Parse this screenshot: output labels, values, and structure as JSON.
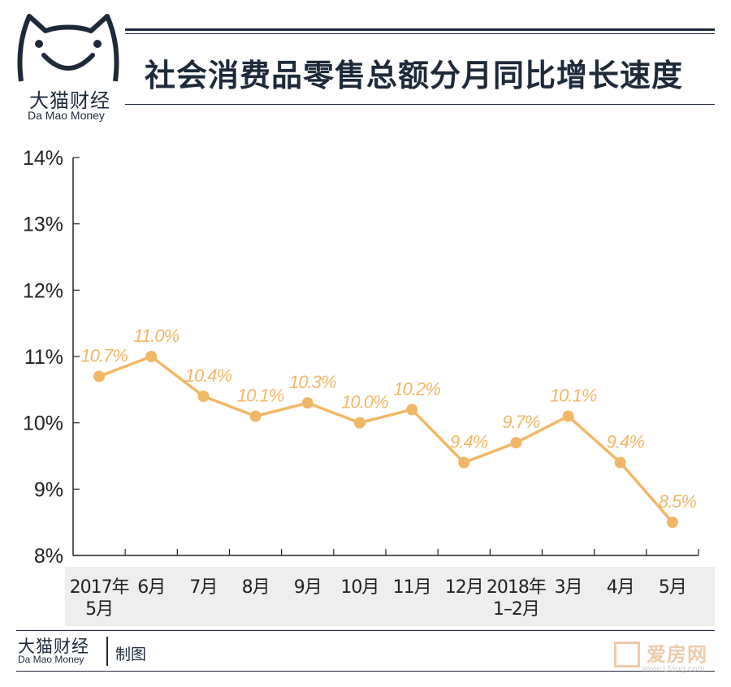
{
  "brand": {
    "name_cn": "大猫财经",
    "name_en": "Da Mao Money"
  },
  "title": "社会消费品零售总额分月同比增长速度",
  "chart_data": {
    "type": "line",
    "title": "社会消费品零售总额分月同比增长速度",
    "categories": [
      {
        "line1": "2017年",
        "line2": "5月"
      },
      {
        "line1": "6月",
        "line2": ""
      },
      {
        "line1": "7月",
        "line2": ""
      },
      {
        "line1": "8月",
        "line2": ""
      },
      {
        "line1": "9月",
        "line2": ""
      },
      {
        "line1": "10月",
        "line2": ""
      },
      {
        "line1": "11月",
        "line2": ""
      },
      {
        "line1": "12月",
        "line2": ""
      },
      {
        "line1": "2018年",
        "line2": "1–2月"
      },
      {
        "line1": "3月",
        "line2": ""
      },
      {
        "line1": "4月",
        "line2": ""
      },
      {
        "line1": "5月",
        "line2": ""
      }
    ],
    "values": [
      10.7,
      11.0,
      10.4,
      10.1,
      10.3,
      10.0,
      10.2,
      9.4,
      9.7,
      10.1,
      9.4,
      8.5
    ],
    "data_labels": [
      "10.7%",
      "11.0%",
      "10.4%",
      "10.1%",
      "10.3%",
      "10.0%",
      "10.2%",
      "9.4%",
      "9.7%",
      "10.1%",
      "9.4%",
      "8.5%"
    ],
    "y_ticks": [
      "8%",
      "9%",
      "10%",
      "11%",
      "12%",
      "13%",
      "14%"
    ],
    "ylim": [
      8,
      14
    ],
    "grid": false,
    "colors": {
      "line": "#f2b766",
      "label": "#f2b766",
      "axis": "#222222",
      "band": "#eeeeee"
    }
  },
  "footer": {
    "brand_cn": "大猫财经",
    "brand_en": "Da Mao Money",
    "made_by": "制图"
  },
  "watermark": {
    "text": "爱房网",
    "url": "www.Lfang.com"
  }
}
